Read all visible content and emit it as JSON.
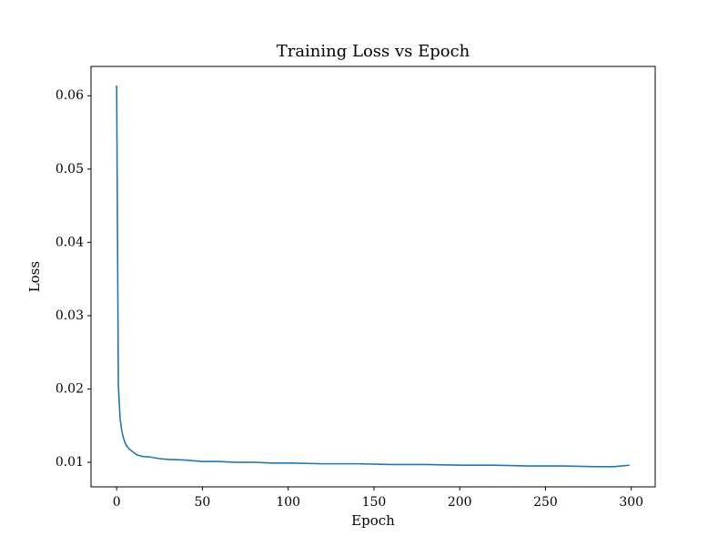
{
  "chart_data": {
    "type": "line",
    "title": "Training Loss vs Epoch",
    "x_label": "Epoch",
    "y_label": "Loss",
    "x": [
      0,
      1,
      2,
      3,
      4,
      5,
      6,
      7,
      8,
      10,
      12,
      15,
      20,
      25,
      30,
      40,
      50,
      60,
      70,
      80,
      90,
      100,
      120,
      140,
      160,
      180,
      200,
      220,
      240,
      260,
      280,
      290,
      299
    ],
    "series": [
      {
        "name": "Loss",
        "color": "#1f77b4",
        "values": [
          0.0614,
          0.0205,
          0.016,
          0.0143,
          0.0133,
          0.0126,
          0.0122,
          0.0119,
          0.0117,
          0.0113,
          0.011,
          0.0108,
          0.0107,
          0.0105,
          0.0104,
          0.0103,
          0.0101,
          0.0101,
          0.01,
          0.01,
          0.0099,
          0.0099,
          0.0098,
          0.0098,
          0.0097,
          0.0097,
          0.0096,
          0.0096,
          0.0095,
          0.0095,
          0.0094,
          0.0094,
          0.0096
        ]
      }
    ],
    "xlim": [
      -14.95,
      313.95
    ],
    "xticks": [
      0,
      50,
      100,
      150,
      200,
      250,
      300
    ],
    "ylim": [
      0.00665,
      0.064
    ],
    "yticks": [
      0.01,
      0.02,
      0.03,
      0.04,
      0.05,
      0.06
    ],
    "grid": false
  }
}
